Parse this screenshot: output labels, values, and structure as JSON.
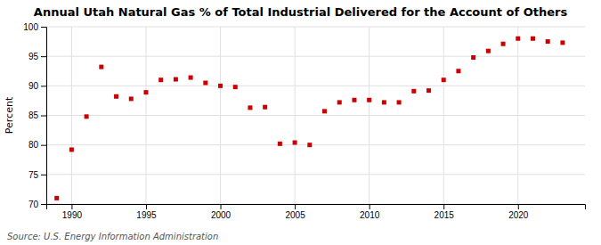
{
  "chart_data": {
    "type": "scatter",
    "title": "Annual Utah Natural Gas % of Total Industrial Delivered for the Account of Others",
    "y_label": "Percent",
    "annotations": [
      "Source: U.S. Energy Information Administration"
    ],
    "x": [
      1989,
      1990,
      1991,
      1992,
      1993,
      1994,
      1995,
      1996,
      1997,
      1998,
      1999,
      2000,
      2001,
      2002,
      2003,
      2004,
      2005,
      2006,
      2007,
      2008,
      2009,
      2010,
      2011,
      2012,
      2013,
      2014,
      2015,
      2016,
      2017,
      2018,
      2019,
      2020,
      2021,
      2022,
      2023
    ],
    "values": [
      71.0,
      79.2,
      84.8,
      93.2,
      88.2,
      87.8,
      88.9,
      91.0,
      91.1,
      91.4,
      90.5,
      90.0,
      89.8,
      86.3,
      86.4,
      80.2,
      80.4,
      80.0,
      85.7,
      87.2,
      87.6,
      87.6,
      87.2,
      87.2,
      89.1,
      89.2,
      91.0,
      92.5,
      94.8,
      95.9,
      97.1,
      98.0,
      98.0,
      97.5,
      97.3
    ],
    "color": "#cc0000",
    "marker": "square",
    "xlim": [
      1988.3,
      2024.5
    ],
    "xticks": [
      1990,
      1995,
      2000,
      2005,
      2010,
      2015,
      2020
    ],
    "ylim": [
      70,
      100
    ],
    "yticks": [
      70,
      75,
      80,
      85,
      90,
      95,
      100
    ],
    "grid": true
  }
}
